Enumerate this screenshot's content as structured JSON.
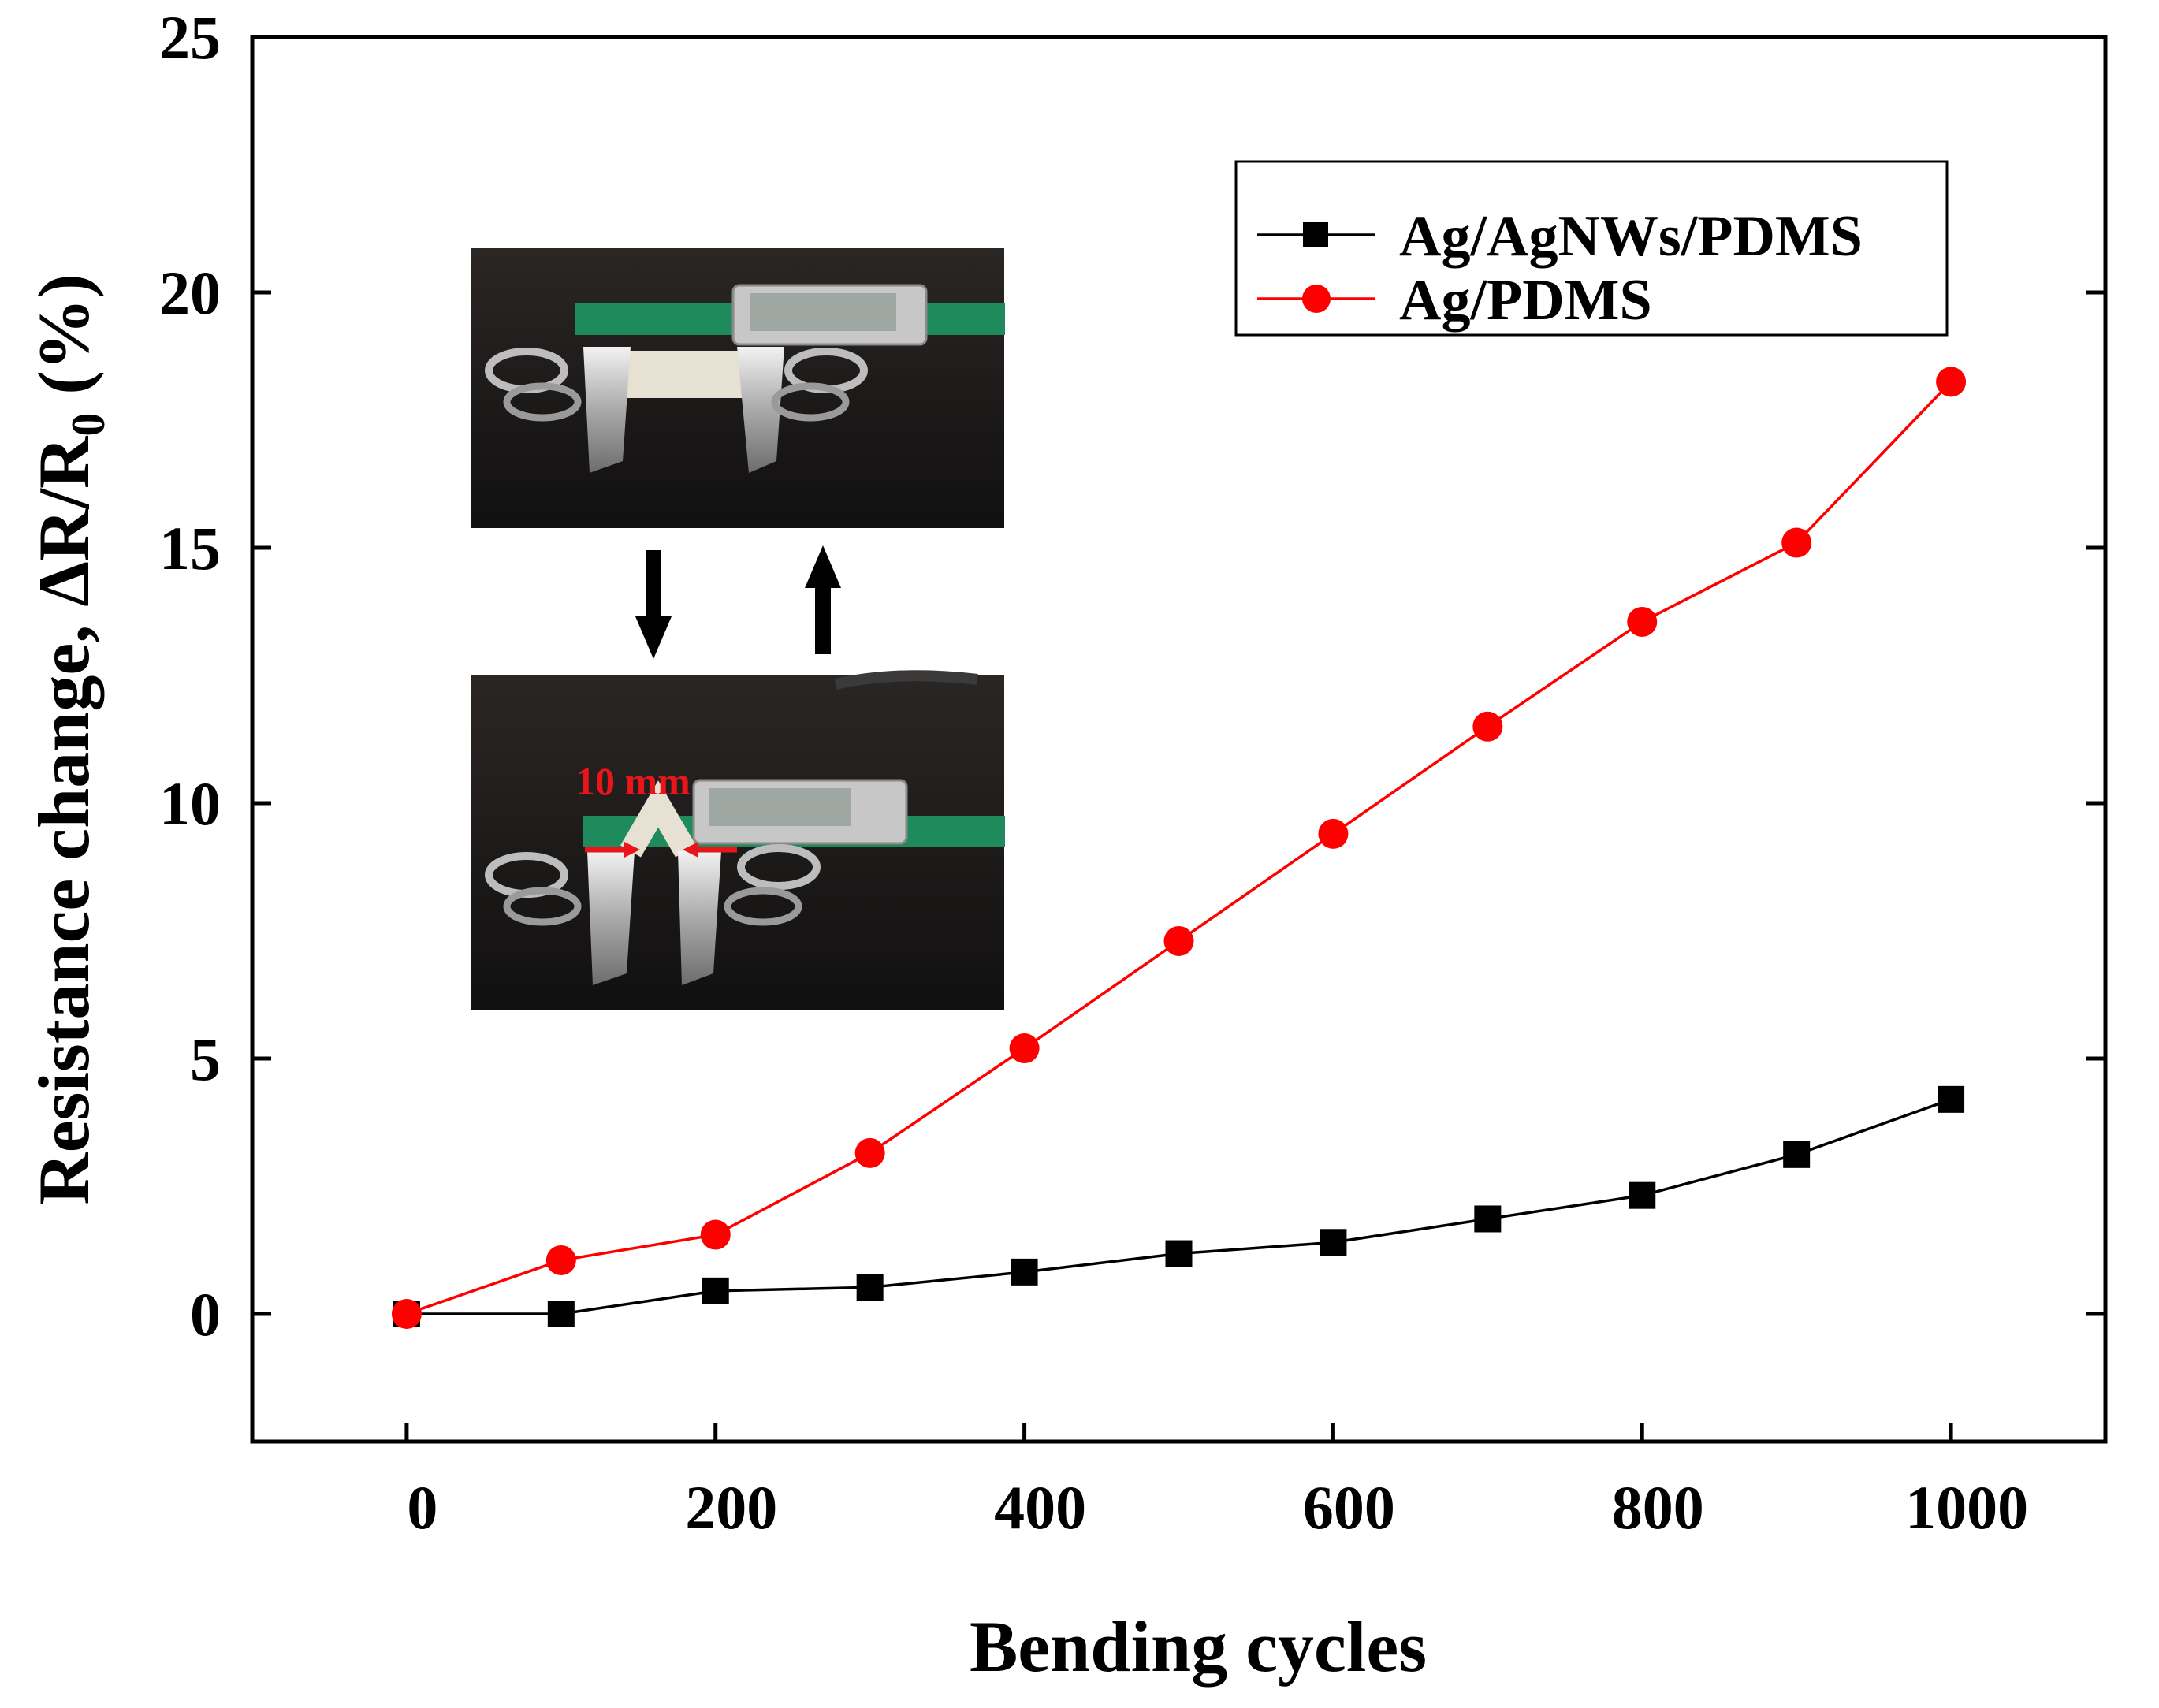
{
  "chart_data": {
    "type": "line",
    "xlabel": "Bending cycles",
    "ylabel_main": "Resistance change, ΔR/R",
    "ylabel_sub": "0",
    "ylabel_unit": " (%)",
    "xlim": [
      -100,
      1100
    ],
    "ylim": [
      -2.5,
      25
    ],
    "x_ticks": [
      0,
      200,
      400,
      600,
      800,
      1000
    ],
    "x_tick_labels": [
      "0",
      "200",
      "400",
      "600",
      "800",
      "1000"
    ],
    "y_ticks": [
      0,
      5,
      10,
      15,
      20,
      25
    ],
    "y_tick_labels": [
      "0",
      "5",
      "10",
      "15",
      "20",
      "25"
    ],
    "grid": false,
    "legend_position": "top-right",
    "x": [
      0,
      100,
      200,
      300,
      400,
      500,
      600,
      700,
      800,
      900,
      1000
    ],
    "series": [
      {
        "name": "Ag/AgNWs/PDMS",
        "color": "#000000",
        "marker": "square",
        "values": [
          0.0,
          0.0,
          0.45,
          0.52,
          0.82,
          1.18,
          1.4,
          1.86,
          2.32,
          3.12,
          4.2
        ]
      },
      {
        "name": "Ag/PDMS",
        "color": "#ff0000",
        "marker": "circle",
        "values": [
          0.0,
          1.05,
          1.55,
          3.15,
          5.2,
          7.3,
          9.4,
          11.5,
          13.55,
          15.1,
          18.25
        ]
      }
    ],
    "inset": {
      "description_icon": "caliper-bending-photo-icon",
      "annotation": "10 mm",
      "arrow_down_icon": "arrow-down-icon",
      "arrow_up_icon": "arrow-up-icon"
    }
  }
}
